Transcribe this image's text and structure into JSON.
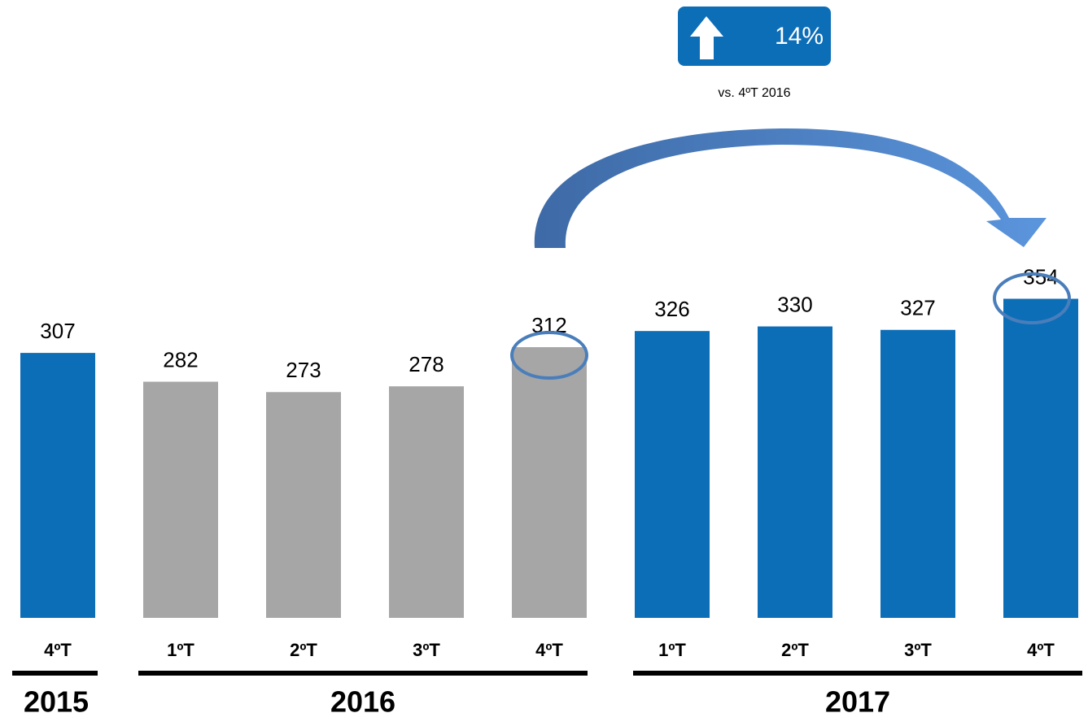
{
  "chart_data": {
    "type": "bar",
    "categories": [
      "4ºT",
      "1ºT",
      "2ºT",
      "3ºT",
      "4ºT",
      "1ºT",
      "2ºT",
      "3ºT",
      "4ºT"
    ],
    "values": [
      307,
      282,
      273,
      278,
      312,
      326,
      330,
      327,
      354
    ],
    "colors": [
      "#0d6eb8",
      "#a6a6a6",
      "#a6a6a6",
      "#a6a6a6",
      "#a6a6a6",
      "#0d6eb8",
      "#0d6eb8",
      "#0d6eb8",
      "#0d6eb8"
    ],
    "ylim": [
      77,
      360
    ],
    "groups": [
      "2015",
      "2016",
      "2017"
    ],
    "annotation": "14%",
    "annotation_note": "vs. 4ºT 2016"
  }
}
